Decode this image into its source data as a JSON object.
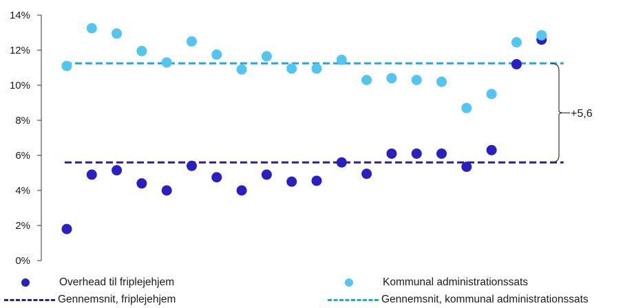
{
  "chart_data": {
    "type": "scatter",
    "title": "",
    "xlabel": "",
    "ylabel": "",
    "ylim": [
      0,
      14
    ],
    "yticks": [
      "0%",
      "2%",
      "4%",
      "6%",
      "8%",
      "10%",
      "12%",
      "14%"
    ],
    "grid": false,
    "legend_position": "bottom",
    "series": [
      {
        "name": "Overhead til friplejehjem",
        "color": "#2a1fc4",
        "values": [
          1.8,
          4.9,
          5.15,
          4.4,
          4.0,
          5.4,
          4.75,
          4.0,
          4.9,
          4.5,
          4.55,
          5.6,
          4.95,
          6.1,
          6.1,
          6.1,
          5.35,
          6.3,
          11.2,
          12.6
        ]
      },
      {
        "name": "Kommunal administrationssats",
        "color": "#52c6f2",
        "values": [
          11.1,
          13.25,
          12.95,
          11.95,
          11.3,
          12.5,
          11.75,
          10.9,
          11.65,
          10.95,
          10.95,
          11.45,
          10.3,
          10.4,
          10.3,
          10.2,
          8.7,
          9.5,
          12.45,
          12.85
        ]
      }
    ],
    "averages": [
      {
        "name": "Gennemsnit, friplejehjem",
        "value": 5.6,
        "color": "#2a1f8f"
      },
      {
        "name": "Gennemsnit, kommunal administrationssats",
        "value": 11.25,
        "color": "#1fa8e0"
      }
    ],
    "annotation": {
      "text": "+5,6"
    }
  }
}
